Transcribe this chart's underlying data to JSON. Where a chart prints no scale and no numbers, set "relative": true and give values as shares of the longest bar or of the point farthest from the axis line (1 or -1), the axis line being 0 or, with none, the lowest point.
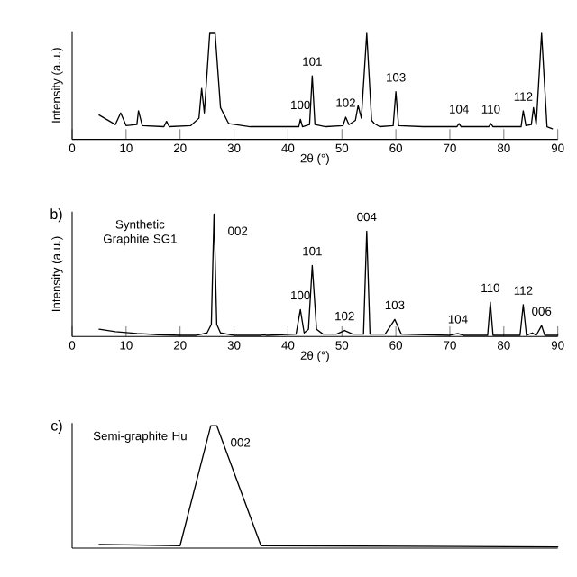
{
  "chart_data": [
    {
      "type": "line",
      "relative": true,
      "xlabel": "2θ (°)",
      "ylabel": "Intensity (a.u.)",
      "xlim": [
        0,
        90
      ],
      "xticks": [
        0,
        10,
        20,
        30,
        40,
        50,
        60,
        70,
        80,
        90
      ],
      "x": [
        5,
        7,
        8,
        9,
        10,
        12,
        12.3,
        13,
        17,
        17.5,
        18,
        22,
        23.5,
        24,
        24.5,
        25.5,
        26.5,
        27.5,
        29,
        33,
        40,
        42,
        42.3,
        42.7,
        44,
        44.5,
        45,
        47,
        50.2,
        50.7,
        51.3,
        52.5,
        53,
        53.6,
        54.6,
        55.5,
        56,
        57,
        59.5,
        60,
        60.5,
        65,
        71.3,
        71.7,
        72.1,
        77.2,
        77.6,
        78,
        83.2,
        83.6,
        84.1,
        85.1,
        85.5,
        86,
        87,
        88,
        89
      ],
      "series": [
        {
          "color": "#000000",
          "values": [
            0.23,
            0.17,
            0.14,
            0.25,
            0.13,
            0.14,
            0.27,
            0.13,
            0.12,
            0.17,
            0.12,
            0.13,
            0.2,
            0.48,
            0.25,
            1,
            1,
            0.3,
            0.15,
            0.12,
            0.12,
            0.12,
            0.19,
            0.12,
            0.14,
            0.6,
            0.14,
            0.12,
            0.13,
            0.21,
            0.14,
            0.18,
            0.32,
            0.2,
            1,
            0.18,
            0.15,
            0.12,
            0.13,
            0.45,
            0.13,
            0.12,
            0.12,
            0.15,
            0.12,
            0.12,
            0.15,
            0.12,
            0.12,
            0.27,
            0.13,
            0.14,
            0.3,
            0.14,
            1,
            0.12,
            0.1
          ]
        }
      ],
      "annotations": [
        {
          "text": "100",
          "x": 42.3,
          "y": 0.19
        },
        {
          "text": "101",
          "x": 44.5,
          "y": 0.6
        },
        {
          "text": "102",
          "x": 50.7,
          "y": 0.21
        },
        {
          "text": "103",
          "x": 60,
          "y": 0.45
        },
        {
          "text": "104",
          "x": 71.7,
          "y": 0.15
        },
        {
          "text": "110",
          "x": 77.6,
          "y": 0.15
        },
        {
          "text": "112",
          "x": 83.6,
          "y": 0.27
        }
      ]
    },
    {
      "type": "line",
      "relative": true,
      "title": "Synthetic Graphite SG1",
      "xlabel": "2θ (°)",
      "ylabel": "Intensity (a.u.)",
      "xlim": [
        0,
        90
      ],
      "xticks": [
        0,
        10,
        20,
        30,
        40,
        50,
        60,
        70,
        80,
        90
      ],
      "x": [
        5,
        8,
        12,
        16,
        20,
        23,
        24,
        25,
        25.8,
        26.3,
        26.8,
        27.5,
        30,
        35,
        35.5,
        36,
        41.5,
        42.3,
        43,
        43.8,
        44.5,
        45.3,
        46.5,
        49,
        50.5,
        52,
        54,
        54.6,
        55.2,
        58,
        59.8,
        61,
        70,
        71.5,
        72.5,
        77,
        77.5,
        78,
        83,
        83.6,
        84.2,
        85.3,
        86,
        87,
        87.6,
        90
      ],
      "series": [
        {
          "color": "#000000",
          "values": [
            0.06,
            0.04,
            0.025,
            0.015,
            0.01,
            0.01,
            0.02,
            0.03,
            0.1,
            1,
            0.1,
            0.03,
            0.01,
            0.01,
            0.015,
            0.01,
            0.02,
            0.22,
            0.03,
            0.06,
            0.58,
            0.06,
            0.02,
            0.02,
            0.05,
            0.02,
            0.02,
            0.86,
            0.02,
            0.02,
            0.14,
            0.02,
            0.01,
            0.025,
            0.01,
            0.01,
            0.28,
            0.01,
            0.01,
            0.26,
            0.01,
            0.03,
            0.01,
            0.09,
            0.01,
            0.01
          ]
        }
      ],
      "annotations": [
        "b)",
        {
          "text": "002",
          "x": 26.3,
          "y": 1
        },
        {
          "text": "100",
          "x": 42.3,
          "y": 0.22
        },
        {
          "text": "101",
          "x": 44.5,
          "y": 0.58
        },
        {
          "text": "102",
          "x": 50.5,
          "y": 0.05
        },
        {
          "text": "004",
          "x": 54.6,
          "y": 0.86
        },
        {
          "text": "103",
          "x": 59.8,
          "y": 0.14
        },
        {
          "text": "104",
          "x": 71.5,
          "y": 0.025
        },
        {
          "text": "110",
          "x": 77.5,
          "y": 0.28
        },
        {
          "text": "112",
          "x": 83.6,
          "y": 0.26
        },
        {
          "text": "006",
          "x": 87,
          "y": 0.09
        }
      ]
    },
    {
      "type": "line",
      "relative": true,
      "title": "Semi-graphite Hu",
      "xlim": [
        0,
        90
      ],
      "x": [
        5,
        20,
        25.7,
        26.8,
        35,
        90
      ],
      "series": [
        {
          "color": "#000000",
          "values": [
            0.03,
            0.02,
            1,
            1,
            0.02,
            0.01
          ]
        }
      ],
      "annotations": [
        "c)",
        {
          "text": "002",
          "x": 26.8,
          "y": 1
        }
      ]
    }
  ]
}
